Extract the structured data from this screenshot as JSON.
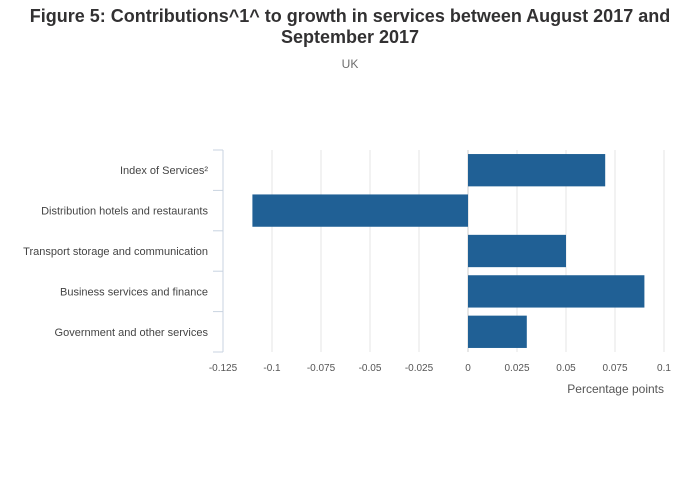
{
  "chart_data": {
    "type": "bar",
    "orientation": "horizontal",
    "title": "Figure 5: Contributions^1^ to growth in services between August 2017 and September 2017",
    "subtitle": "UK",
    "xlabel": "Percentage points",
    "ylabel": "",
    "categories": [
      "Index of Services²",
      "Distribution hotels and restaurants",
      "Transport storage and communication",
      "Business services and finance",
      "Government and other services"
    ],
    "values": [
      0.07,
      -0.11,
      0.05,
      0.09,
      0.03
    ],
    "xlim": [
      -0.125,
      0.1
    ],
    "xticks": [
      "-0.125",
      "-0.1",
      "-0.075",
      "-0.05",
      "-0.025",
      "0",
      "0.025",
      "0.05",
      "0.075",
      "0.1"
    ],
    "grid": true,
    "legend": "none",
    "bar_color": "#206095"
  }
}
